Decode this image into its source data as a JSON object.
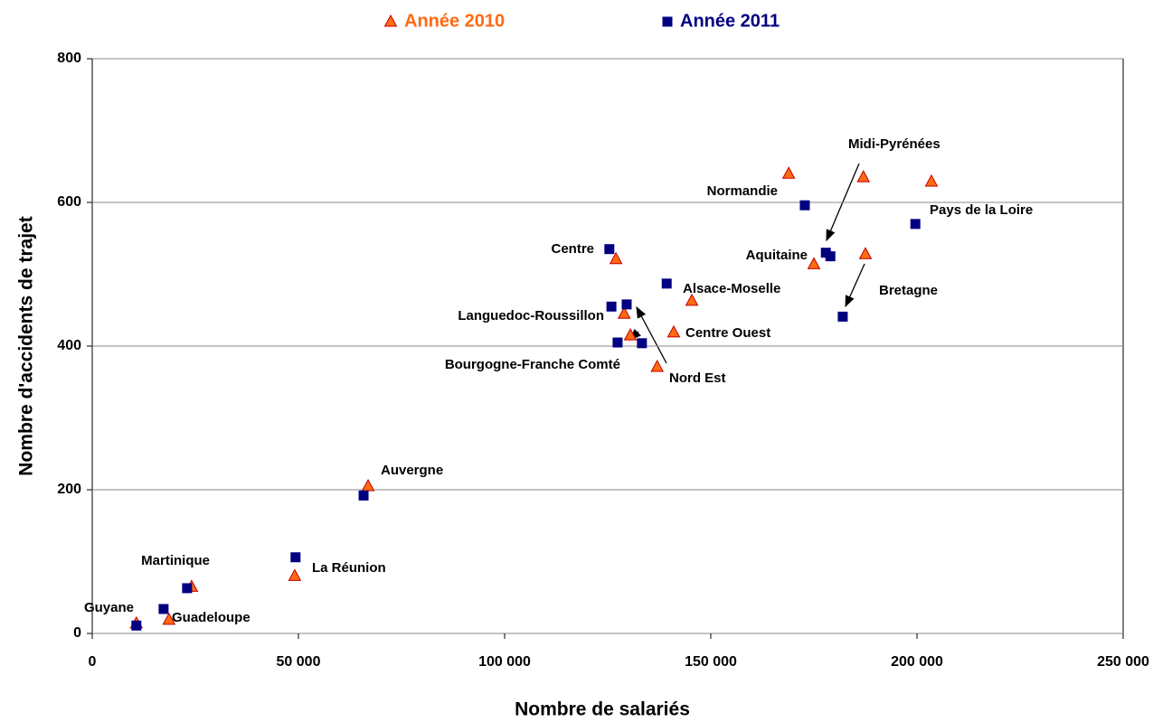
{
  "chart_data": {
    "type": "scatter",
    "xlabel": "Nombre de salariés",
    "ylabel": "Nombre d'accidents de trajet",
    "xlim": [
      0,
      250000
    ],
    "ylim": [
      0,
      800
    ],
    "xticks": [
      0,
      {
        "value": 50000,
        "label": "50 000"
      },
      {
        "value": 100000,
        "label": "100 000"
      },
      {
        "value": 150000,
        "label": "150 000"
      },
      {
        "value": 200000,
        "label": "200 000"
      },
      {
        "value": 250000,
        "label": "250 000"
      }
    ],
    "yticks": [
      0,
      200,
      400,
      600,
      800
    ],
    "grid": true,
    "legend": "top",
    "series": [
      {
        "name": "Année 2010",
        "color": "#ff6a13",
        "marker": "triangle",
        "x": [
          168900,
          187000,
          203500,
          187500,
          175000,
          127000,
          145400,
          129000,
          130500,
          141000,
          137000,
          66900,
          49100,
          24100,
          18600,
          10700
        ],
        "values": [
          640,
          635,
          629,
          528,
          514,
          521,
          463,
          445,
          415,
          419,
          371,
          205,
          80,
          65,
          19,
          14
        ]
      },
      {
        "name": "Année 2011",
        "color": "#000080",
        "marker": "square",
        "x": [
          172800,
          199600,
          177900,
          179000,
          182000,
          125400,
          139300,
          125900,
          129600,
          127400,
          133300,
          65800,
          49300,
          23000,
          17300,
          10700
        ],
        "values": [
          596,
          570,
          530,
          525,
          441,
          535,
          487,
          455,
          458,
          405,
          404,
          192,
          106,
          63,
          34,
          11
        ]
      }
    ],
    "annotations": [
      "Midi-Pyrénées",
      "Normandie",
      "Pays de la Loire",
      "Aquitaine",
      "Bretagne",
      "Centre",
      "Alsace-Moselle",
      "Languedoc-Roussillon",
      "Centre Ouest",
      "Bourgogne-Franche Comté",
      "Nord Est",
      "Auvergne",
      "La Réunion",
      "Martinique",
      "Guyane",
      "Guadeloupe"
    ]
  }
}
